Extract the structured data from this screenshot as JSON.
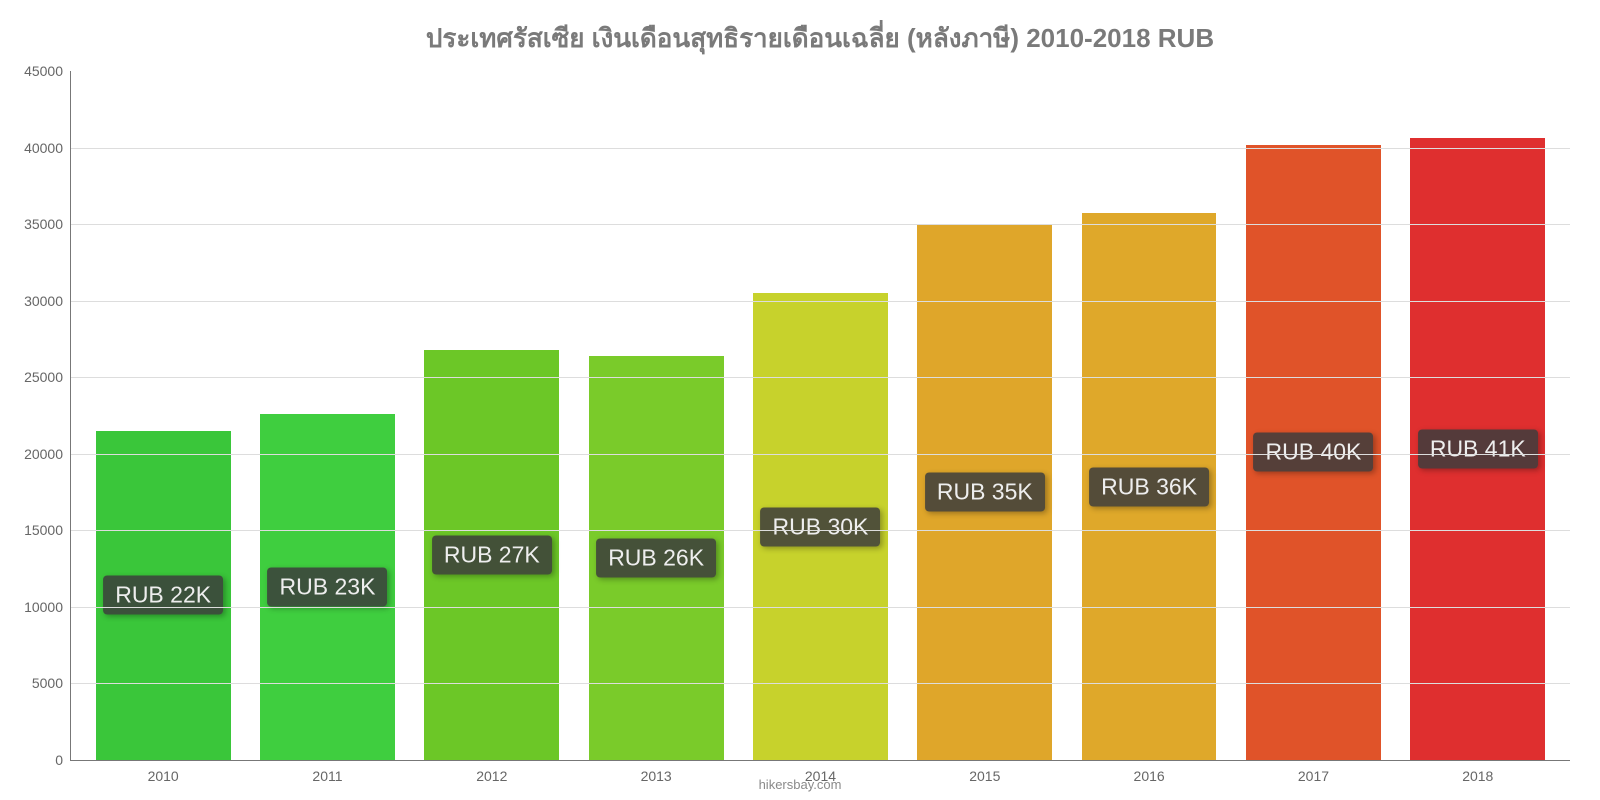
{
  "chart": {
    "type": "bar",
    "title": "ประเทศรัสเซีย เงินเดือนสุทธิรายเดือนเฉลี่ย (หลังภาษี) 2010-2018 RUB",
    "title_color": "#7a7a7a",
    "title_fontsize": 26,
    "background_color": "#ffffff",
    "grid_color": "#dddddd",
    "axis_color": "#777777",
    "tick_label_color": "#666666",
    "tick_label_fontsize": 14,
    "ylim": [
      0,
      45000
    ],
    "ytick_step": 5000,
    "yticks": [
      0,
      5000,
      10000,
      15000,
      20000,
      25000,
      30000,
      35000,
      40000,
      45000
    ],
    "bar_width": 0.82,
    "categories": [
      "2010",
      "2011",
      "2012",
      "2013",
      "2014",
      "2015",
      "2016",
      "2017",
      "2018"
    ],
    "values": [
      21500,
      22600,
      26800,
      26400,
      30500,
      35000,
      35700,
      40200,
      40600
    ],
    "value_labels": [
      "RUB 22K",
      "RUB 23K",
      "RUB 27K",
      "RUB 26K",
      "RUB 30K",
      "RUB 35K",
      "RUB 36K",
      "RUB 40K",
      "RUB 41K"
    ],
    "bar_colors": [
      "#3ac63a",
      "#3fce3f",
      "#6cc727",
      "#7acb2a",
      "#c7d22c",
      "#dfa62a",
      "#dfa82a",
      "#e05329",
      "#df2f2f"
    ],
    "label_box_bg": "rgba(60,60,60,0.85)",
    "label_box_text_color": "#eeeeee",
    "label_box_fontsize": 23,
    "attribution": "hikersbay.com",
    "attribution_color": "#8a8a8a"
  }
}
